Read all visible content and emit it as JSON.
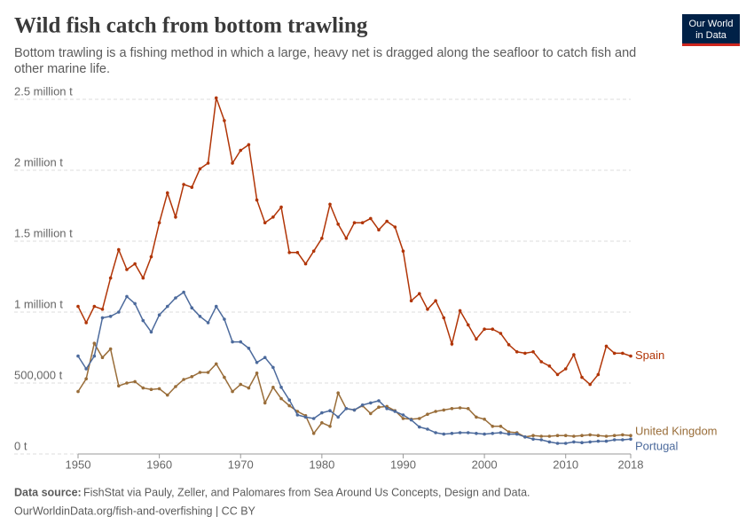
{
  "chart_data": {
    "type": "line",
    "title": "Wild fish catch from bottom trawling",
    "subtitle": "Bottom trawling is a fishing method in which a large, heavy net is dragged along the seafloor to catch fish and other marine life.",
    "source_label": "Data source:",
    "source": "FishStat via Pauly, Zeller, and Palomares from Sea Around Us Concepts, Design and Data.",
    "footer": "OurWorldinData.org/fish-and-overfishing | CC BY",
    "logo": [
      "Our World",
      "in Data"
    ],
    "x": [
      1950,
      1951,
      1952,
      1953,
      1954,
      1955,
      1956,
      1957,
      1958,
      1959,
      1960,
      1961,
      1962,
      1963,
      1964,
      1965,
      1966,
      1967,
      1968,
      1969,
      1970,
      1971,
      1972,
      1973,
      1974,
      1975,
      1976,
      1977,
      1978,
      1979,
      1980,
      1981,
      1982,
      1983,
      1984,
      1985,
      1986,
      1987,
      1988,
      1989,
      1990,
      1991,
      1992,
      1993,
      1994,
      1995,
      1996,
      1997,
      1998,
      1999,
      2000,
      2001,
      2002,
      2003,
      2004,
      2005,
      2006,
      2007,
      2008,
      2009,
      2010,
      2011,
      2012,
      2013,
      2014,
      2015,
      2016,
      2017,
      2018
    ],
    "xlim": [
      1950,
      2018
    ],
    "xticks": [
      1950,
      1960,
      1970,
      1980,
      1990,
      2000,
      2010,
      2018
    ],
    "ylim": [
      0,
      2500000
    ],
    "yticks": [
      {
        "value": 0,
        "label": "0 t"
      },
      {
        "value": 500000,
        "label": "500,000 t"
      },
      {
        "value": 1000000,
        "label": "1 million t"
      },
      {
        "value": 1500000,
        "label": "1.5 million t"
      },
      {
        "value": 2000000,
        "label": "2 million t"
      },
      {
        "value": 2500000,
        "label": "2.5 million t"
      }
    ],
    "grid": true,
    "series": [
      {
        "name": "Spain",
        "color": "#b13507",
        "values": [
          1040000,
          925000,
          1040000,
          1020000,
          1240000,
          1440000,
          1300000,
          1340000,
          1240000,
          1390000,
          1630000,
          1840000,
          1670000,
          1900000,
          1880000,
          2010000,
          2050000,
          2510000,
          2350000,
          2050000,
          2140000,
          2180000,
          1790000,
          1630000,
          1670000,
          1740000,
          1420000,
          1420000,
          1340000,
          1430000,
          1520000,
          1760000,
          1620000,
          1520000,
          1630000,
          1630000,
          1660000,
          1580000,
          1640000,
          1600000,
          1430000,
          1080000,
          1130000,
          1020000,
          1080000,
          960000,
          775000,
          1010000,
          910000,
          810000,
          880000,
          880000,
          850000,
          770000,
          720000,
          710000,
          720000,
          650000,
          620000,
          560000,
          600000,
          700000,
          540000,
          490000,
          560000,
          760000,
          710000,
          710000,
          690000
        ]
      },
      {
        "name": "United Kingdom",
        "color": "#996d39",
        "values": [
          440000,
          530000,
          780000,
          680000,
          740000,
          480000,
          500000,
          510000,
          465000,
          455000,
          460000,
          415000,
          475000,
          525000,
          545000,
          575000,
          575000,
          635000,
          540000,
          440000,
          490000,
          465000,
          570000,
          360000,
          470000,
          390000,
          340000,
          300000,
          270000,
          145000,
          220000,
          195000,
          430000,
          320000,
          310000,
          340000,
          285000,
          330000,
          335000,
          305000,
          250000,
          245000,
          250000,
          280000,
          300000,
          310000,
          320000,
          325000,
          320000,
          260000,
          245000,
          195000,
          195000,
          155000,
          150000,
          120000,
          130000,
          125000,
          125000,
          130000,
          130000,
          125000,
          130000,
          135000,
          130000,
          125000,
          130000,
          135000,
          130000
        ]
      },
      {
        "name": "Portugal",
        "color": "#4c6a9c",
        "values": [
          690000,
          600000,
          690000,
          960000,
          970000,
          1000000,
          1110000,
          1060000,
          940000,
          860000,
          980000,
          1040000,
          1100000,
          1140000,
          1030000,
          970000,
          925000,
          1040000,
          950000,
          790000,
          790000,
          745000,
          645000,
          680000,
          610000,
          470000,
          380000,
          275000,
          260000,
          250000,
          290000,
          305000,
          260000,
          320000,
          310000,
          345000,
          360000,
          375000,
          320000,
          300000,
          275000,
          240000,
          190000,
          175000,
          150000,
          140000,
          145000,
          150000,
          150000,
          145000,
          140000,
          145000,
          150000,
          140000,
          140000,
          120000,
          105000,
          100000,
          85000,
          75000,
          75000,
          85000,
          80000,
          85000,
          90000,
          90000,
          100000,
          100000,
          105000
        ]
      }
    ]
  }
}
